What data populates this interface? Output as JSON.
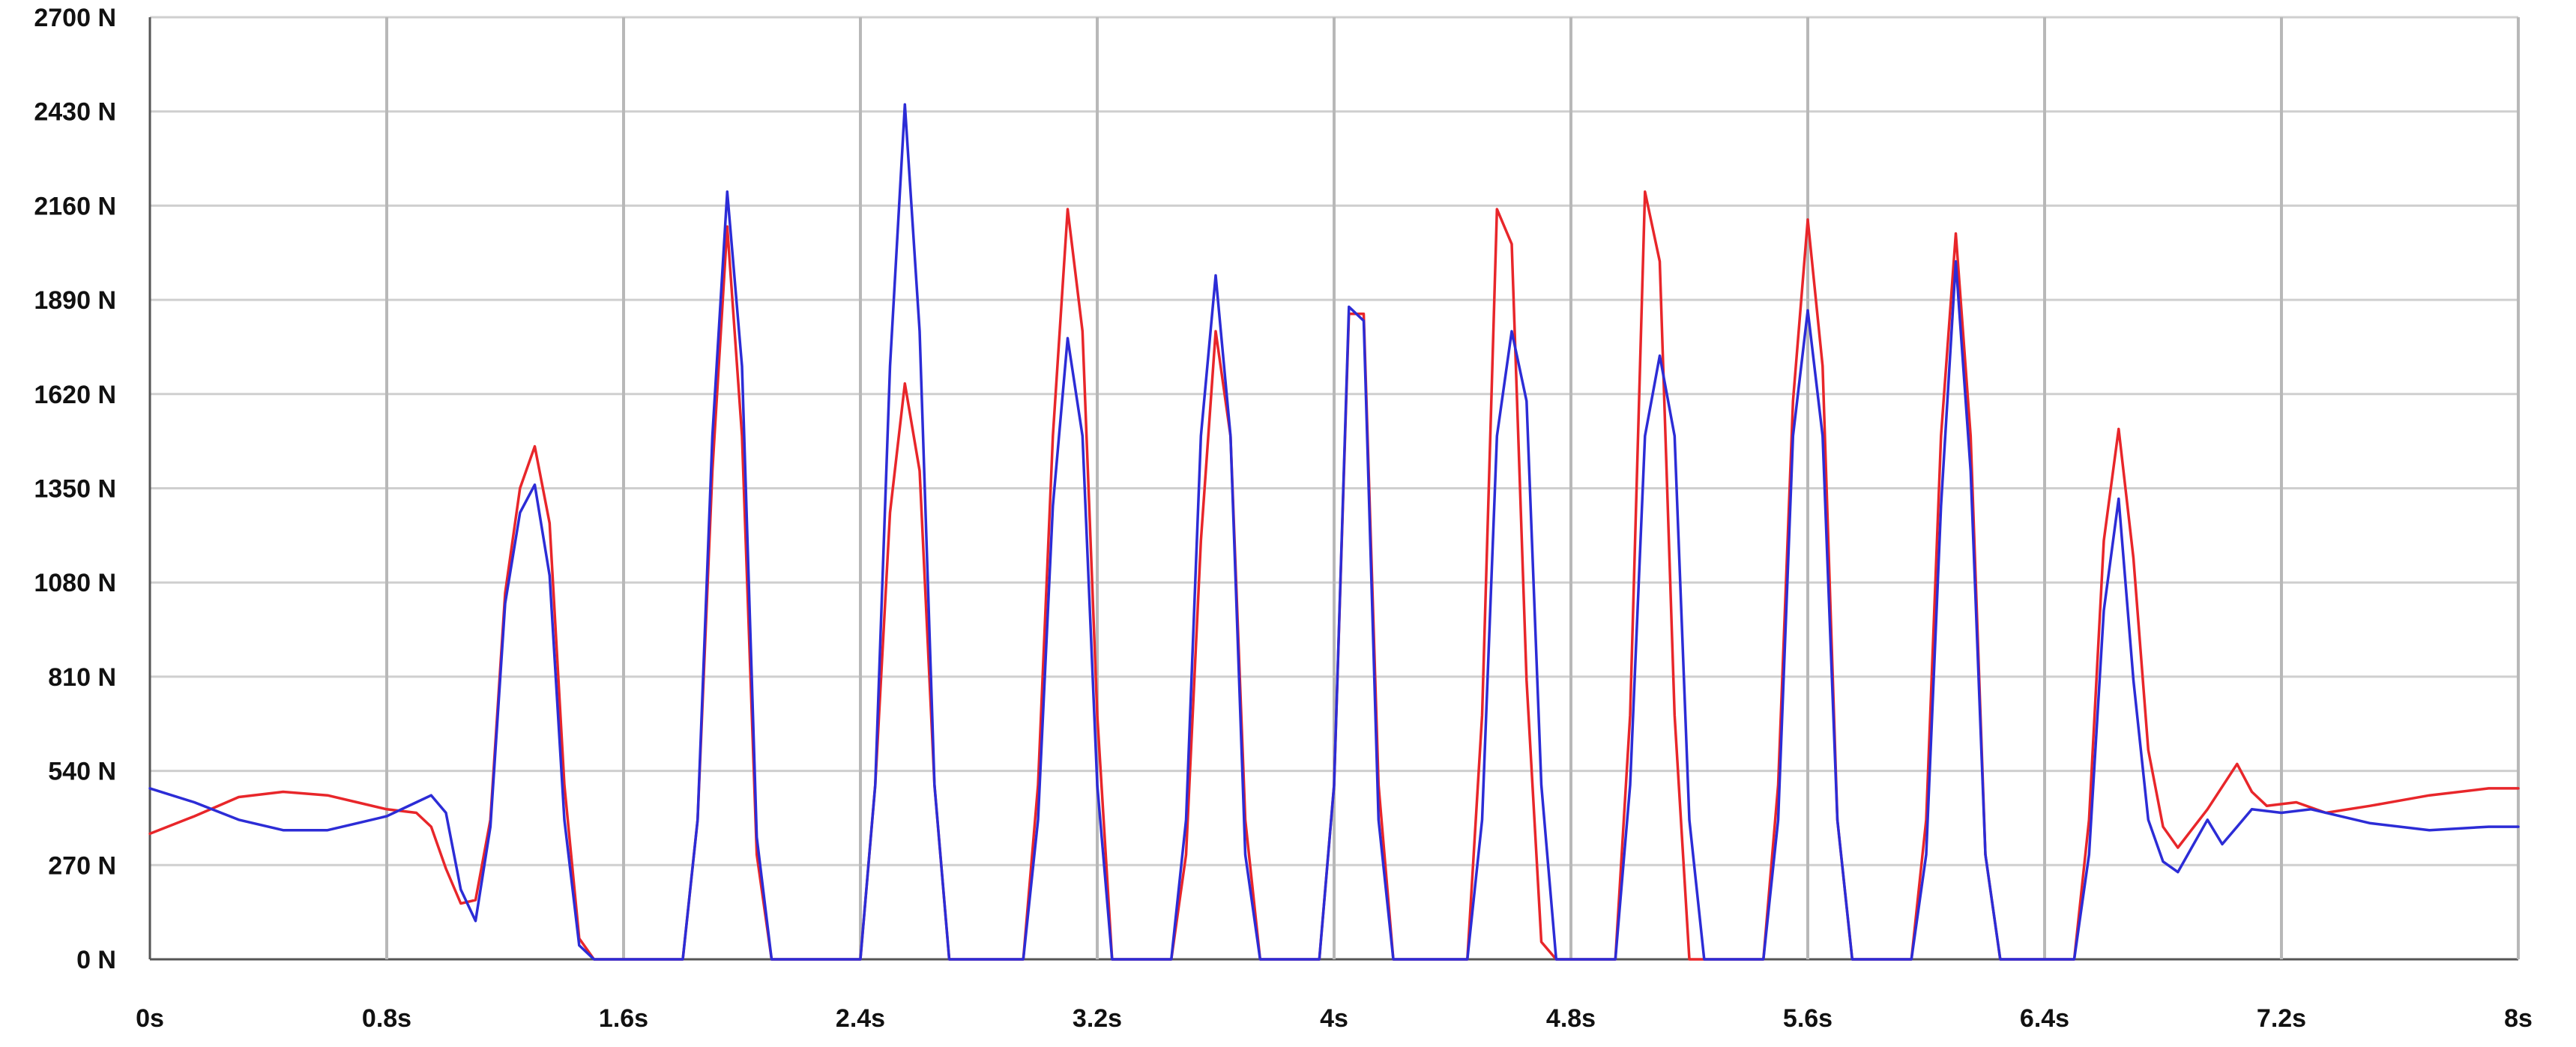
{
  "chart_data": {
    "type": "line",
    "title": "",
    "xlabel": "",
    "ylabel": "",
    "xlim": [
      0,
      8
    ],
    "ylim": [
      0,
      2700
    ],
    "grid": true,
    "x_tick_labels": [
      "0s",
      "0.8s",
      "1.6s",
      "2.4s",
      "3.2s",
      "4s",
      "4.8s",
      "5.6s",
      "6.4s",
      "7.2s",
      "8s"
    ],
    "x_tick_values": [
      0,
      0.8,
      1.6,
      2.4,
      3.2,
      4.0,
      4.8,
      5.6,
      6.4,
      7.2,
      8.0
    ],
    "y_tick_labels": [
      "0 N",
      "270 N",
      "540 N",
      "810 N",
      "1080 N",
      "1350 N",
      "1620 N",
      "1890 N",
      "2160 N",
      "2430 N",
      "2700 N"
    ],
    "y_tick_values": [
      0,
      270,
      540,
      810,
      1080,
      1350,
      1620,
      1890,
      2160,
      2430,
      2700
    ],
    "series": [
      {
        "color": "#e8262a",
        "points": [
          [
            0.0,
            360
          ],
          [
            0.15,
            410
          ],
          [
            0.3,
            465
          ],
          [
            0.45,
            480
          ],
          [
            0.6,
            470
          ],
          [
            0.7,
            450
          ],
          [
            0.8,
            430
          ],
          [
            0.9,
            420
          ],
          [
            0.95,
            380
          ],
          [
            1.0,
            260
          ],
          [
            1.05,
            160
          ],
          [
            1.1,
            170
          ],
          [
            1.15,
            400
          ],
          [
            1.2,
            1050
          ],
          [
            1.25,
            1350
          ],
          [
            1.3,
            1470
          ],
          [
            1.35,
            1250
          ],
          [
            1.4,
            500
          ],
          [
            1.45,
            60
          ],
          [
            1.5,
            0
          ],
          [
            1.8,
            0
          ],
          [
            1.85,
            400
          ],
          [
            1.9,
            1400
          ],
          [
            1.95,
            2100
          ],
          [
            2.0,
            1500
          ],
          [
            2.05,
            300
          ],
          [
            2.1,
            0
          ],
          [
            2.4,
            0
          ],
          [
            2.45,
            500
          ],
          [
            2.5,
            1280
          ],
          [
            2.55,
            1650
          ],
          [
            2.6,
            1400
          ],
          [
            2.65,
            500
          ],
          [
            2.7,
            0
          ],
          [
            2.95,
            0
          ],
          [
            3.0,
            500
          ],
          [
            3.05,
            1500
          ],
          [
            3.1,
            2150
          ],
          [
            3.15,
            1800
          ],
          [
            3.2,
            700
          ],
          [
            3.25,
            0
          ],
          [
            3.45,
            0
          ],
          [
            3.5,
            300
          ],
          [
            3.55,
            1200
          ],
          [
            3.6,
            1800
          ],
          [
            3.65,
            1500
          ],
          [
            3.7,
            400
          ],
          [
            3.75,
            0
          ],
          [
            3.95,
            0
          ],
          [
            4.0,
            500
          ],
          [
            4.05,
            1850
          ],
          [
            4.1,
            1850
          ],
          [
            4.15,
            500
          ],
          [
            4.2,
            0
          ],
          [
            4.45,
            0
          ],
          [
            4.5,
            700
          ],
          [
            4.55,
            2150
          ],
          [
            4.6,
            2050
          ],
          [
            4.65,
            800
          ],
          [
            4.7,
            50
          ],
          [
            4.75,
            0
          ],
          [
            4.95,
            0
          ],
          [
            5.0,
            700
          ],
          [
            5.05,
            2200
          ],
          [
            5.1,
            2000
          ],
          [
            5.15,
            700
          ],
          [
            5.2,
            0
          ],
          [
            5.45,
            0
          ],
          [
            5.5,
            500
          ],
          [
            5.55,
            1600
          ],
          [
            5.6,
            2120
          ],
          [
            5.65,
            1700
          ],
          [
            5.7,
            400
          ],
          [
            5.75,
            0
          ],
          [
            5.95,
            0
          ],
          [
            6.0,
            400
          ],
          [
            6.05,
            1500
          ],
          [
            6.1,
            2080
          ],
          [
            6.15,
            1500
          ],
          [
            6.2,
            300
          ],
          [
            6.25,
            0
          ],
          [
            6.5,
            0
          ],
          [
            6.55,
            400
          ],
          [
            6.6,
            1200
          ],
          [
            6.65,
            1520
          ],
          [
            6.7,
            1150
          ],
          [
            6.75,
            600
          ],
          [
            6.8,
            380
          ],
          [
            6.85,
            320
          ],
          [
            6.95,
            430
          ],
          [
            7.05,
            560
          ],
          [
            7.1,
            480
          ],
          [
            7.15,
            440
          ],
          [
            7.25,
            450
          ],
          [
            7.35,
            420
          ],
          [
            7.5,
            440
          ],
          [
            7.7,
            470
          ],
          [
            7.9,
            490
          ],
          [
            8.0,
            490
          ]
        ]
      },
      {
        "color": "#2c2cd6",
        "points": [
          [
            0.0,
            490
          ],
          [
            0.15,
            450
          ],
          [
            0.3,
            400
          ],
          [
            0.45,
            370
          ],
          [
            0.6,
            370
          ],
          [
            0.7,
            390
          ],
          [
            0.8,
            410
          ],
          [
            0.9,
            450
          ],
          [
            0.95,
            470
          ],
          [
            1.0,
            420
          ],
          [
            1.05,
            200
          ],
          [
            1.1,
            110
          ],
          [
            1.15,
            380
          ],
          [
            1.2,
            1020
          ],
          [
            1.25,
            1280
          ],
          [
            1.3,
            1360
          ],
          [
            1.35,
            1100
          ],
          [
            1.4,
            400
          ],
          [
            1.45,
            40
          ],
          [
            1.5,
            0
          ],
          [
            1.8,
            0
          ],
          [
            1.85,
            400
          ],
          [
            1.9,
            1500
          ],
          [
            1.95,
            2200
          ],
          [
            2.0,
            1700
          ],
          [
            2.05,
            350
          ],
          [
            2.1,
            0
          ],
          [
            2.4,
            0
          ],
          [
            2.45,
            500
          ],
          [
            2.5,
            1700
          ],
          [
            2.55,
            2450
          ],
          [
            2.6,
            1800
          ],
          [
            2.65,
            500
          ],
          [
            2.7,
            0
          ],
          [
            2.95,
            0
          ],
          [
            3.0,
            400
          ],
          [
            3.05,
            1300
          ],
          [
            3.1,
            1780
          ],
          [
            3.15,
            1500
          ],
          [
            3.2,
            500
          ],
          [
            3.25,
            0
          ],
          [
            3.45,
            0
          ],
          [
            3.5,
            400
          ],
          [
            3.55,
            1500
          ],
          [
            3.6,
            1960
          ],
          [
            3.65,
            1500
          ],
          [
            3.7,
            300
          ],
          [
            3.75,
            0
          ],
          [
            3.95,
            0
          ],
          [
            4.0,
            500
          ],
          [
            4.05,
            1870
          ],
          [
            4.1,
            1830
          ],
          [
            4.15,
            400
          ],
          [
            4.2,
            0
          ],
          [
            4.45,
            0
          ],
          [
            4.5,
            400
          ],
          [
            4.55,
            1500
          ],
          [
            4.6,
            1800
          ],
          [
            4.65,
            1600
          ],
          [
            4.7,
            500
          ],
          [
            4.75,
            0
          ],
          [
            4.95,
            0
          ],
          [
            5.0,
            500
          ],
          [
            5.05,
            1500
          ],
          [
            5.1,
            1730
          ],
          [
            5.15,
            1500
          ],
          [
            5.2,
            400
          ],
          [
            5.25,
            0
          ],
          [
            5.45,
            0
          ],
          [
            5.5,
            400
          ],
          [
            5.55,
            1500
          ],
          [
            5.6,
            1860
          ],
          [
            5.65,
            1500
          ],
          [
            5.7,
            400
          ],
          [
            5.75,
            0
          ],
          [
            5.95,
            0
          ],
          [
            6.0,
            300
          ],
          [
            6.05,
            1300
          ],
          [
            6.1,
            2000
          ],
          [
            6.15,
            1400
          ],
          [
            6.2,
            300
          ],
          [
            6.25,
            0
          ],
          [
            6.5,
            0
          ],
          [
            6.55,
            300
          ],
          [
            6.6,
            1000
          ],
          [
            6.65,
            1320
          ],
          [
            6.7,
            800
          ],
          [
            6.75,
            400
          ],
          [
            6.8,
            280
          ],
          [
            6.85,
            250
          ],
          [
            6.95,
            400
          ],
          [
            7.0,
            330
          ],
          [
            7.05,
            380
          ],
          [
            7.1,
            430
          ],
          [
            7.2,
            420
          ],
          [
            7.3,
            430
          ],
          [
            7.5,
            390
          ],
          [
            7.7,
            370
          ],
          [
            7.9,
            380
          ],
          [
            8.0,
            380
          ]
        ]
      }
    ]
  }
}
